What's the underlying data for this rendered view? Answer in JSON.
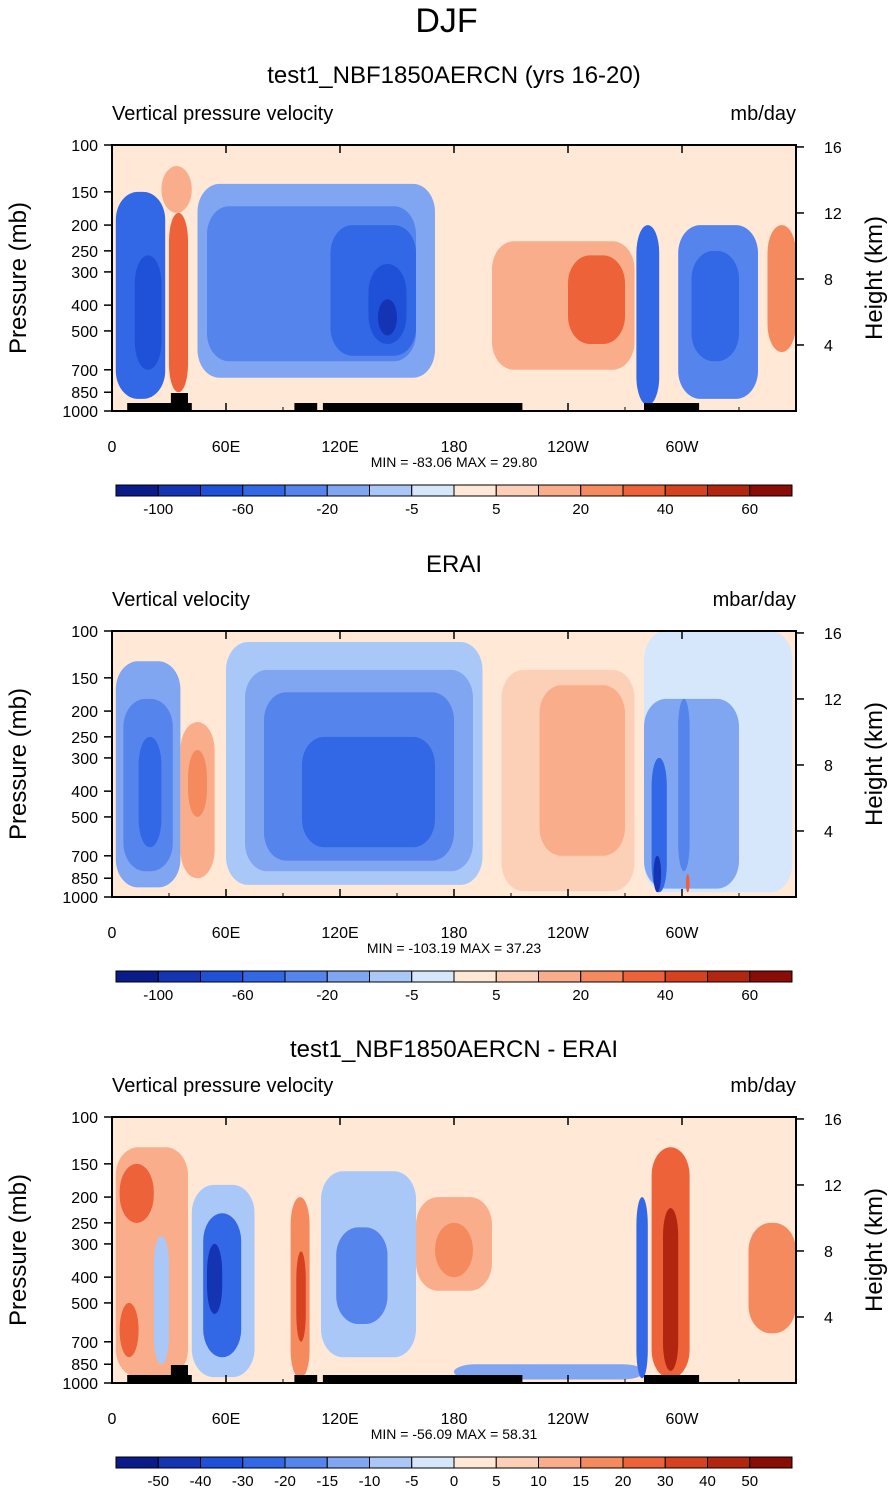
{
  "figure_title": "DJF",
  "chart_data": [
    {
      "type": "heatmap",
      "title": "test1_NBF1850AERCN (yrs 16-20)",
      "left_label": "Vertical pressure velocity",
      "right_label": "mb/day",
      "ylabel": "Pressure (mb)",
      "y2label": "Height (km)",
      "minmax_text": "MIN = -83.06  MAX =  29.80",
      "x_ticks": [
        "0",
        "60E",
        "120E",
        "180",
        "120W",
        "60W"
      ],
      "x_tick_values": [
        0,
        60,
        120,
        180,
        240,
        300
      ],
      "xlim": [
        0,
        360
      ],
      "y_ticks": [
        "100",
        "150",
        "200",
        "250",
        "300",
        "400",
        "500",
        "700",
        "850",
        "1000"
      ],
      "y_tick_values": [
        100,
        150,
        200,
        250,
        300,
        400,
        500,
        700,
        850,
        1000
      ],
      "ylim": [
        100,
        1000
      ],
      "y2_ticks": [
        "16",
        "12",
        "8",
        "4"
      ],
      "y2_tick_values": [
        16,
        12,
        8,
        4
      ],
      "colorbar_labels": [
        "-100",
        "-60",
        "-20",
        "-5",
        "5",
        "20",
        "40",
        "60"
      ],
      "colorbar_label_bins": [
        1,
        3,
        5,
        7,
        9,
        11,
        13,
        15
      ],
      "colorbar_colors": [
        "#0a1c8a",
        "#1434b4",
        "#1e50d8",
        "#3267e6",
        "#5585ec",
        "#80a6f2",
        "#aac8f7",
        "#d6e6fb",
        "#ffe8d6",
        "#fcd0b6",
        "#f9ad8a",
        "#f58a5e",
        "#ed6238",
        "#d64220",
        "#b22610",
        "#8a0c06"
      ],
      "field": [
        {
          "lon": [
            2,
            28
          ],
          "p": [
            150,
            900
          ],
          "bin": 3
        },
        {
          "lon": [
            12,
            26
          ],
          "p": [
            260,
            700
          ],
          "bin": 2
        },
        {
          "lon": [
            30,
            40
          ],
          "p": [
            180,
            850
          ],
          "bin": 12
        },
        {
          "lon": [
            26,
            42
          ],
          "p": [
            120,
            180
          ],
          "bin": 10
        },
        {
          "lon": [
            45,
            170
          ],
          "p": [
            140,
            750
          ],
          "bin": 5
        },
        {
          "lon": [
            50,
            160
          ],
          "p": [
            170,
            650
          ],
          "bin": 4
        },
        {
          "lon": [
            115,
            160
          ],
          "p": [
            200,
            620
          ],
          "bin": 3
        },
        {
          "lon": [
            135,
            155
          ],
          "p": [
            280,
            560
          ],
          "bin": 2
        },
        {
          "lon": [
            140,
            150
          ],
          "p": [
            380,
            520
          ],
          "bin": 1
        },
        {
          "lon": [
            200,
            275
          ],
          "p": [
            230,
            700
          ],
          "bin": 10
        },
        {
          "lon": [
            240,
            270
          ],
          "p": [
            260,
            560
          ],
          "bin": 12
        },
        {
          "lon": [
            276,
            288
          ],
          "p": [
            200,
            950
          ],
          "bin": 3
        },
        {
          "lon": [
            298,
            340
          ],
          "p": [
            200,
            900
          ],
          "bin": 4
        },
        {
          "lon": [
            305,
            330
          ],
          "p": [
            250,
            650
          ],
          "bin": 3
        },
        {
          "lon": [
            345,
            360
          ],
          "p": [
            200,
            600
          ],
          "bin": 11
        }
      ],
      "land_segments": [
        [
          8,
          42
        ],
        [
          96,
          108
        ],
        [
          111,
          216
        ],
        [
          280,
          309
        ]
      ],
      "land_bumps": [
        [
          31,
          40
        ]
      ]
    },
    {
      "type": "heatmap",
      "title": "ERAI",
      "left_label": "Vertical velocity",
      "right_label": "mbar/day",
      "ylabel": "Pressure (mb)",
      "y2label": "Height (km)",
      "minmax_text": "MIN = -103.19  MAX =  37.23",
      "x_ticks": [
        "0",
        "60E",
        "120E",
        "180",
        "120W",
        "60W"
      ],
      "x_tick_values": [
        0,
        60,
        120,
        180,
        240,
        300
      ],
      "xlim": [
        0,
        360
      ],
      "y_ticks": [
        "100",
        "150",
        "200",
        "250",
        "300",
        "400",
        "500",
        "700",
        "850",
        "1000"
      ],
      "y_tick_values": [
        100,
        150,
        200,
        250,
        300,
        400,
        500,
        700,
        850,
        1000
      ],
      "ylim": [
        100,
        1000
      ],
      "y2_ticks": [
        "16",
        "12",
        "8",
        "4"
      ],
      "y2_tick_values": [
        16,
        12,
        8,
        4
      ],
      "colorbar_labels": [
        "-100",
        "-60",
        "-20",
        "-5",
        "5",
        "20",
        "40",
        "60"
      ],
      "colorbar_label_bins": [
        1,
        3,
        5,
        7,
        9,
        11,
        13,
        15
      ],
      "colorbar_colors": [
        "#0a1c8a",
        "#1434b4",
        "#1e50d8",
        "#3267e6",
        "#5585ec",
        "#80a6f2",
        "#aac8f7",
        "#d6e6fb",
        "#ffe8d6",
        "#fcd0b6",
        "#f9ad8a",
        "#f58a5e",
        "#ed6238",
        "#d64220",
        "#b22610",
        "#8a0c06"
      ],
      "field": [
        {
          "lon": [
            2,
            36
          ],
          "p": [
            130,
            920
          ],
          "bin": 5
        },
        {
          "lon": [
            6,
            32
          ],
          "p": [
            180,
            800
          ],
          "bin": 4
        },
        {
          "lon": [
            14,
            26
          ],
          "p": [
            250,
            650
          ],
          "bin": 3
        },
        {
          "lon": [
            36,
            54
          ],
          "p": [
            220,
            850
          ],
          "bin": 10
        },
        {
          "lon": [
            40,
            50
          ],
          "p": [
            280,
            500
          ],
          "bin": 11
        },
        {
          "lon": [
            60,
            195
          ],
          "p": [
            110,
            900
          ],
          "bin": 6
        },
        {
          "lon": [
            70,
            190
          ],
          "p": [
            140,
            800
          ],
          "bin": 5
        },
        {
          "lon": [
            80,
            180
          ],
          "p": [
            170,
            730
          ],
          "bin": 4
        },
        {
          "lon": [
            100,
            170
          ],
          "p": [
            250,
            650
          ],
          "bin": 3
        },
        {
          "lon": [
            205,
            275
          ],
          "p": [
            140,
            950
          ],
          "bin": 9
        },
        {
          "lon": [
            225,
            270
          ],
          "p": [
            160,
            700
          ],
          "bin": 10
        },
        {
          "lon": [
            280,
            358
          ],
          "p": [
            100,
            960
          ],
          "bin": 7
        },
        {
          "lon": [
            280,
            330
          ],
          "p": [
            180,
            930
          ],
          "bin": 5
        },
        {
          "lon": [
            284,
            292
          ],
          "p": [
            300,
            960
          ],
          "bin": 3
        },
        {
          "lon": [
            285,
            289
          ],
          "p": [
            700,
            960
          ],
          "bin": 1
        },
        {
          "lon": [
            298,
            304
          ],
          "p": [
            180,
            800
          ],
          "bin": 4
        },
        {
          "lon": [
            302,
            304
          ],
          "p": [
            820,
            960
          ],
          "bin": 12
        }
      ],
      "land_segments": [],
      "land_bumps": []
    },
    {
      "type": "heatmap",
      "title": "test1_NBF1850AERCN - ERAI",
      "left_label": "Vertical pressure velocity",
      "right_label": "mb/day",
      "ylabel": "Pressure (mb)",
      "y2label": "Height (km)",
      "minmax_text": "MIN = -56.09  MAX =  58.31",
      "x_ticks": [
        "0",
        "60E",
        "120E",
        "180",
        "120W",
        "60W"
      ],
      "x_tick_values": [
        0,
        60,
        120,
        180,
        240,
        300
      ],
      "xlim": [
        0,
        360
      ],
      "y_ticks": [
        "100",
        "150",
        "200",
        "250",
        "300",
        "400",
        "500",
        "700",
        "850",
        "1000"
      ],
      "y_tick_values": [
        100,
        150,
        200,
        250,
        300,
        400,
        500,
        700,
        850,
        1000
      ],
      "ylim": [
        100,
        1000
      ],
      "y2_ticks": [
        "16",
        "12",
        "8",
        "4"
      ],
      "y2_tick_values": [
        16,
        12,
        8,
        4
      ],
      "colorbar_labels": [
        "-50",
        "-40",
        "-30",
        "-20",
        "-15",
        "-10",
        "-5",
        "0",
        "5",
        "10",
        "15",
        "20",
        "30",
        "40",
        "50"
      ],
      "colorbar_label_bins": [
        1,
        2,
        3,
        4,
        5,
        6,
        7,
        8,
        9,
        10,
        11,
        12,
        13,
        14,
        15
      ],
      "colorbar_colors": [
        "#0a1c8a",
        "#1434b4",
        "#1e50d8",
        "#3267e6",
        "#5585ec",
        "#80a6f2",
        "#aac8f7",
        "#d6e6fb",
        "#ffe8d6",
        "#fcd0b6",
        "#f9ad8a",
        "#f58a5e",
        "#ed6238",
        "#d64220",
        "#b22610",
        "#8a0c06"
      ],
      "field": [
        {
          "lon": [
            2,
            40
          ],
          "p": [
            130,
            950
          ],
          "bin": 10
        },
        {
          "lon": [
            4,
            22
          ],
          "p": [
            150,
            250
          ],
          "bin": 12
        },
        {
          "lon": [
            4,
            14
          ],
          "p": [
            500,
            800
          ],
          "bin": 12
        },
        {
          "lon": [
            22,
            30
          ],
          "p": [
            280,
            850
          ],
          "bin": 6
        },
        {
          "lon": [
            42,
            75
          ],
          "p": [
            180,
            950
          ],
          "bin": 6
        },
        {
          "lon": [
            48,
            68
          ],
          "p": [
            230,
            800
          ],
          "bin": 3
        },
        {
          "lon": [
            50,
            58
          ],
          "p": [
            300,
            550
          ],
          "bin": 1
        },
        {
          "lon": [
            94,
            104
          ],
          "p": [
            200,
            960
          ],
          "bin": 11
        },
        {
          "lon": [
            97,
            102
          ],
          "p": [
            320,
            700
          ],
          "bin": 13
        },
        {
          "lon": [
            110,
            160
          ],
          "p": [
            160,
            800
          ],
          "bin": 6
        },
        {
          "lon": [
            118,
            145
          ],
          "p": [
            260,
            600
          ],
          "bin": 4
        },
        {
          "lon": [
            160,
            200
          ],
          "p": [
            200,
            450
          ],
          "bin": 10
        },
        {
          "lon": [
            170,
            190
          ],
          "p": [
            250,
            400
          ],
          "bin": 11
        },
        {
          "lon": [
            180,
            280
          ],
          "p": [
            850,
            970
          ],
          "bin": 5
        },
        {
          "lon": [
            276,
            282
          ],
          "p": [
            200,
            960
          ],
          "bin": 3
        },
        {
          "lon": [
            284,
            304
          ],
          "p": [
            130,
            960
          ],
          "bin": 12
        },
        {
          "lon": [
            290,
            298
          ],
          "p": [
            220,
            900
          ],
          "bin": 14
        },
        {
          "lon": [
            335,
            360
          ],
          "p": [
            250,
            650
          ],
          "bin": 11
        }
      ],
      "land_segments": [
        [
          8,
          42
        ],
        [
          96,
          108
        ],
        [
          111,
          216
        ],
        [
          280,
          309
        ]
      ],
      "land_bumps": [
        [
          31,
          40
        ]
      ]
    }
  ]
}
